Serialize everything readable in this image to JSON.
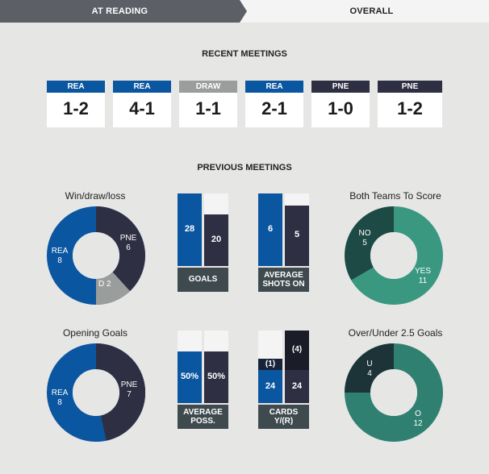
{
  "tabs": {
    "home_label": "AT READING",
    "overall_label": "OVERALL"
  },
  "recent": {
    "title": "RECENT MEETINGS",
    "matches": [
      {
        "team": "REA",
        "score": "1-2",
        "color": "#0a56a0"
      },
      {
        "team": "REA",
        "score": "4-1",
        "color": "#0a56a0"
      },
      {
        "team": "DRAW",
        "score": "1-1",
        "color": "#9a9d9b"
      },
      {
        "team": "REA",
        "score": "2-1",
        "color": "#0a56a0"
      },
      {
        "team": "PNE",
        "score": "1-0",
        "color": "#2e2f42"
      },
      {
        "team": "PNE",
        "score": "1-2",
        "color": "#2e2f42"
      }
    ]
  },
  "previous": {
    "title": "PREVIOUS MEETINGS",
    "wdl": {
      "title": "Win/draw/loss",
      "rea_label": "REA",
      "rea": "8",
      "pne_label": "PNE",
      "pne": "6",
      "draw_label": "D 2"
    },
    "goals": {
      "label": "GOALS",
      "rea": "28",
      "pne": "20"
    },
    "shots": {
      "label1": "AVERAGE",
      "label2": "SHOTS ON",
      "rea": "6",
      "pne": "5"
    },
    "btts": {
      "title": "Both Teams To Score",
      "no_label": "NO",
      "no": "5",
      "yes_label": "YES",
      "yes": "11"
    },
    "opening": {
      "title": "Opening Goals",
      "rea_label": "REA",
      "rea": "8",
      "pne_label": "PNE",
      "pne": "7"
    },
    "poss": {
      "label1": "AVERAGE",
      "label2": "POSS.",
      "rea": "50%",
      "pne": "50%"
    },
    "cards": {
      "label1": "CARDS",
      "label2": "Y/(R)",
      "rea_y": "24",
      "pne_y": "24",
      "rea_r": "(1)",
      "pne_r": "(4)"
    },
    "ou": {
      "title": "Over/Under 2.5 Goals",
      "u_label": "U",
      "u": "4",
      "o_label": "O",
      "o": "12"
    }
  },
  "colors": {
    "rea": "#0a56a0",
    "pne": "#2e2f42",
    "draw": "#9a9d9b",
    "teal_light": "#3a9880",
    "teal_dark": "#1e4a45",
    "label_bg": "#3f4a4f"
  }
}
